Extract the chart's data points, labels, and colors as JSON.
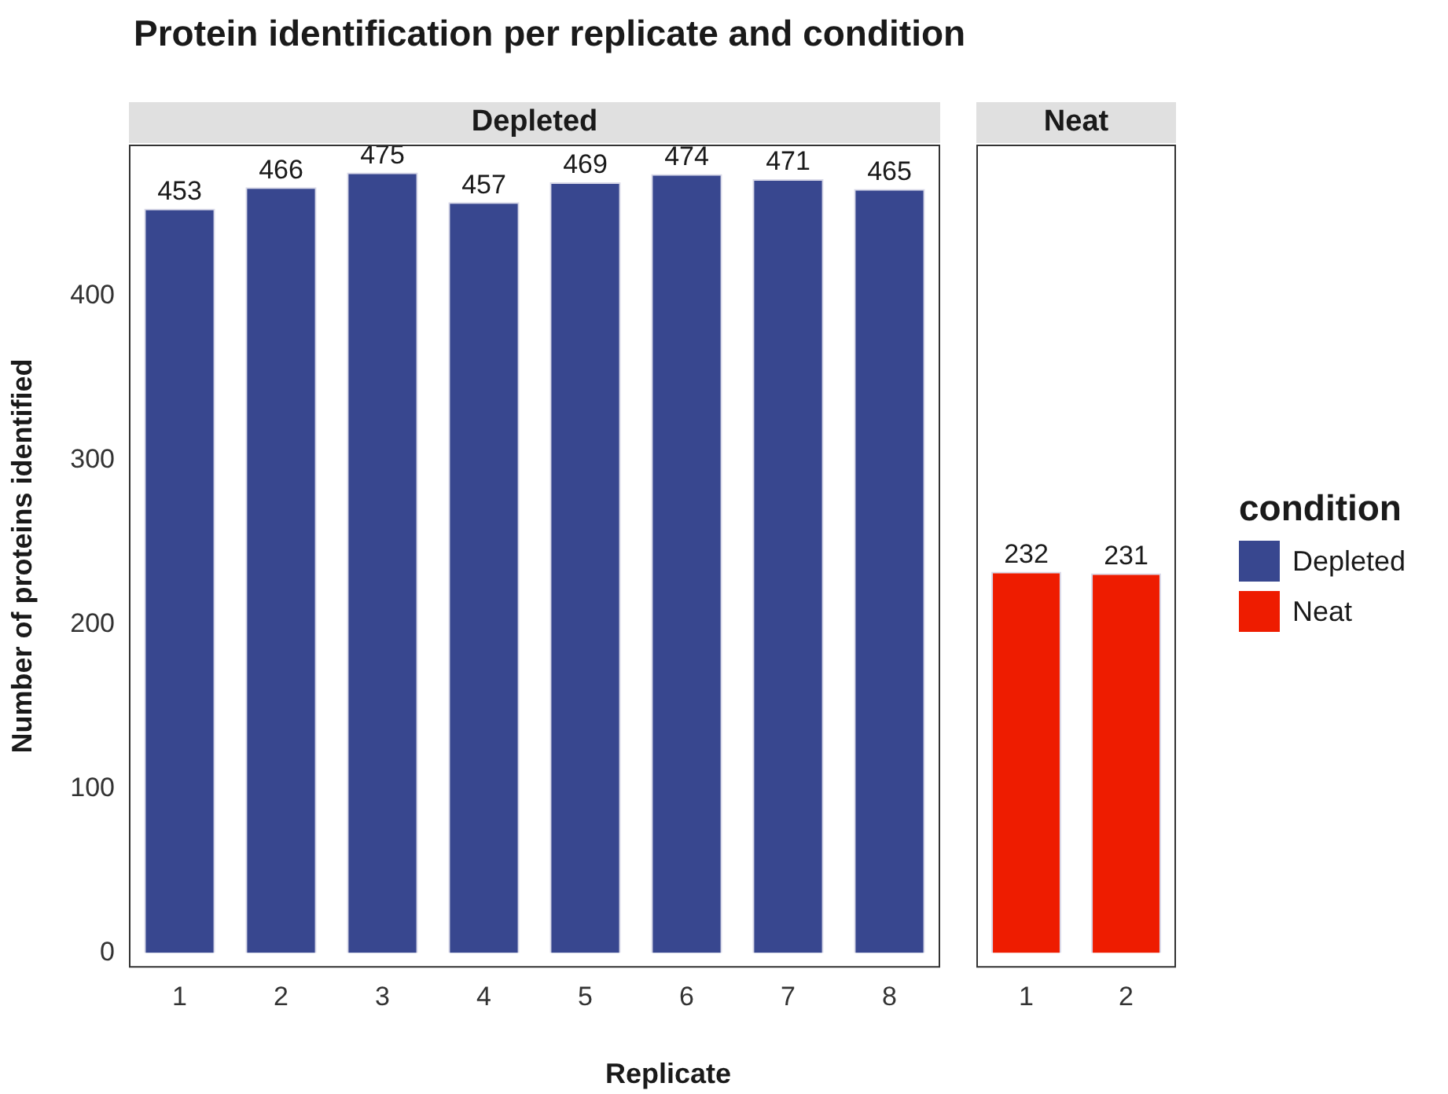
{
  "chart_data": [
    {
      "type": "bar",
      "title": "Protein identification per replicate and condition",
      "subtitle": "Depleted",
      "ylabel": "Number of proteins identified",
      "xlabel": "Replicate",
      "categories": [
        "1",
        "2",
        "3",
        "4",
        "5",
        "6",
        "7",
        "8"
      ],
      "series": [
        {
          "name": "Depleted",
          "color": "#38478f",
          "values": [
            453,
            466,
            475,
            457,
            469,
            474,
            471,
            465
          ]
        }
      ],
      "ylim": [
        -9,
        492
      ],
      "yticks": [
        0,
        100,
        200,
        300,
        400
      ],
      "data_labels": true
    },
    {
      "type": "bar",
      "subtitle": "Neat",
      "categories": [
        "1",
        "2"
      ],
      "series": [
        {
          "name": "Neat",
          "color": "#ee1c00",
          "values": [
            232,
            231
          ]
        }
      ],
      "ylim": [
        -9,
        492
      ],
      "yticks": [
        0,
        100,
        200,
        300,
        400
      ],
      "data_labels": true,
      "tick_labels": "x",
      "legend": "right",
      "legend_title": "condition"
    }
  ]
}
